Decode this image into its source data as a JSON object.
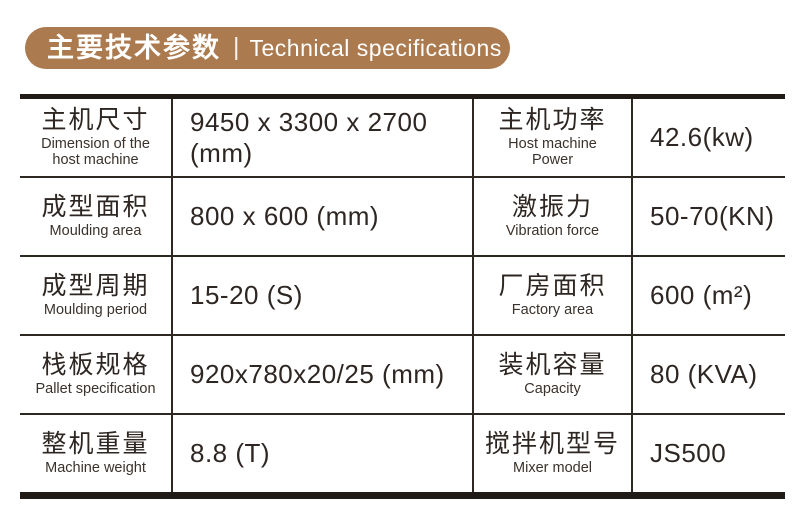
{
  "banner": {
    "title_zh": "主要技术参数",
    "separator": "|",
    "title_en": "Technical specifications",
    "bg_color": "#ab7a4e",
    "text_color": "#ffffff"
  },
  "table": {
    "border_color": "#211b17",
    "rows": [
      {
        "param1_zh": "主机尺寸",
        "param1_en": "Dimension of the\nhost machine",
        "value1": "9450 x 3300 x 2700 (mm)",
        "param2_zh": "主机功率",
        "param2_en": "Host machine\nPower",
        "value2": "42.6(kw)"
      },
      {
        "param1_zh": "成型面积",
        "param1_en": "Moulding area",
        "value1": "800 x 600 (mm)",
        "param2_zh": "激振力",
        "param2_en": "Vibration force",
        "value2": "50-70(KN)"
      },
      {
        "param1_zh": "成型周期",
        "param1_en": "Moulding period",
        "value1": "15-20 (S)",
        "param2_zh": "厂房面积",
        "param2_en": "Factory area",
        "value2": "600 (m²)"
      },
      {
        "param1_zh": "栈板规格",
        "param1_en": "Pallet specification",
        "value1": "920x780x20/25 (mm)",
        "param2_zh": "装机容量",
        "param2_en": "Capacity",
        "value2": "80 (KVA)"
      },
      {
        "param1_zh": "整机重量",
        "param1_en": "Machine weight",
        "value1": "8.8 (T)",
        "param2_zh": "搅拌机型号",
        "param2_en": "Mixer model",
        "value2": "JS500"
      }
    ]
  }
}
